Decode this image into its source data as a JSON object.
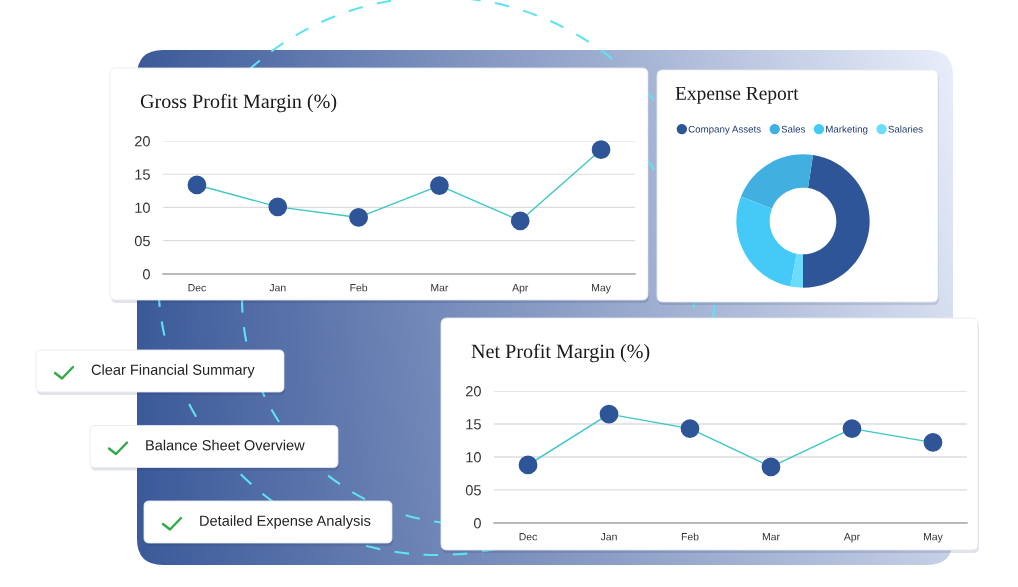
{
  "chart_data": [
    {
      "type": "line",
      "title": "Gross Profit Margin (%)",
      "categories": [
        "Dec",
        "Jan",
        "Feb",
        "Mar",
        "Apr",
        "May"
      ],
      "series": [
        {
          "color": "#3cc6c6",
          "colors": [
            "#2e5597",
            "#2e5597",
            "#2e5597",
            "#2e5597",
            "#2e5597",
            "#2e5597"
          ],
          "values": [
            13.4,
            10.1,
            8.5,
            13.3,
            8.0,
            18.7
          ]
        }
      ],
      "ylim": [
        0,
        20
      ],
      "yticks": [
        0,
        {
          "value": 5,
          "label": "05"
        },
        10,
        15,
        20
      ],
      "grid": "y",
      "marker": "circle",
      "line_style": "solid"
    },
    {
      "type": "donut",
      "title": "Expense Report",
      "categories": [
        "Company Assets",
        "Sales",
        "Marketing",
        "Salaries"
      ],
      "values": [
        47.6,
        21.4,
        28,
        3
      ],
      "colors": [
        "#2e5597",
        "#41b0e0",
        "#45c9f7",
        "#6cdcfc"
      ],
      "legend": "top"
    },
    {
      "type": "line",
      "title": "Net Profit Margin (%)",
      "categories": [
        "Dec",
        "Jan",
        "Feb",
        "Mar",
        "Apr",
        "May"
      ],
      "series": [
        {
          "color": "#3cc6c6",
          "colors": [
            "#2e5597",
            "#2e5597",
            "#2e5597",
            "#2e5597",
            "#2e5597",
            "#2e5597"
          ],
          "values": [
            8.8,
            16.5,
            14.3,
            8.5,
            14.3,
            12.2
          ]
        }
      ],
      "ylim": [
        0,
        20
      ],
      "yticks": [
        0,
        {
          "value": 5,
          "label": "05"
        },
        10,
        15,
        20
      ],
      "grid": "y",
      "marker": "circle",
      "line_style": "solid"
    },
    {
      "type": "other",
      "annotations": [
        "Clear Financial Summary",
        "Balance Sheet Overview",
        "Detailed Expense Analysis"
      ]
    }
  ]
}
